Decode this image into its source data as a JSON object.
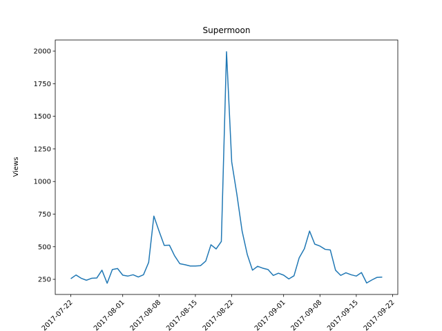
{
  "chart_data": {
    "type": "line",
    "title": "Supermoon",
    "y_label": "Views",
    "x": [
      "2017-07-22",
      "2017-07-23",
      "2017-07-24",
      "2017-07-25",
      "2017-07-26",
      "2017-07-27",
      "2017-07-28",
      "2017-07-29",
      "2017-07-30",
      "2017-07-31",
      "2017-08-01",
      "2017-08-02",
      "2017-08-03",
      "2017-08-04",
      "2017-08-05",
      "2017-08-06",
      "2017-08-07",
      "2017-08-08",
      "2017-08-09",
      "2017-08-10",
      "2017-08-11",
      "2017-08-12",
      "2017-08-13",
      "2017-08-14",
      "2017-08-15",
      "2017-08-16",
      "2017-08-17",
      "2017-08-18",
      "2017-08-19",
      "2017-08-20",
      "2017-08-21",
      "2017-08-22",
      "2017-08-23",
      "2017-08-24",
      "2017-08-25",
      "2017-08-26",
      "2017-08-27",
      "2017-08-28",
      "2017-08-29",
      "2017-08-30",
      "2017-08-31",
      "2017-09-01",
      "2017-09-02",
      "2017-09-03",
      "2017-09-04",
      "2017-09-05",
      "2017-09-06",
      "2017-09-07",
      "2017-09-08",
      "2017-09-09",
      "2017-09-10",
      "2017-09-11",
      "2017-09-12",
      "2017-09-13",
      "2017-09-14",
      "2017-09-15",
      "2017-09-16",
      "2017-09-17",
      "2017-09-18",
      "2017-09-19",
      "2017-09-20"
    ],
    "values": [
      255,
      283,
      258,
      243,
      258,
      260,
      320,
      220,
      325,
      333,
      282,
      275,
      285,
      268,
      285,
      380,
      735,
      620,
      510,
      512,
      430,
      370,
      362,
      352,
      352,
      355,
      390,
      515,
      483,
      540,
      1995,
      1150,
      900,
      620,
      440,
      320,
      350,
      335,
      325,
      280,
      297,
      282,
      253,
      277,
      415,
      485,
      620,
      520,
      505,
      480,
      475,
      320,
      280,
      300,
      285,
      275,
      302,
      222,
      245,
      265,
      267
    ],
    "color": "#1f77b4",
    "xlim": [
      "2017-07-19",
      "2017-09-23"
    ],
    "xticks": [
      "2017-07-22",
      "2017-08-01",
      "2017-08-08",
      "2017-08-15",
      "2017-08-22",
      "2017-09-01",
      "2017-09-08",
      "2017-09-15",
      "2017-09-22"
    ],
    "ylim": [
      134,
      2085
    ],
    "yticks": [
      250,
      500,
      750,
      1000,
      1250,
      1500,
      1750,
      2000
    ]
  }
}
